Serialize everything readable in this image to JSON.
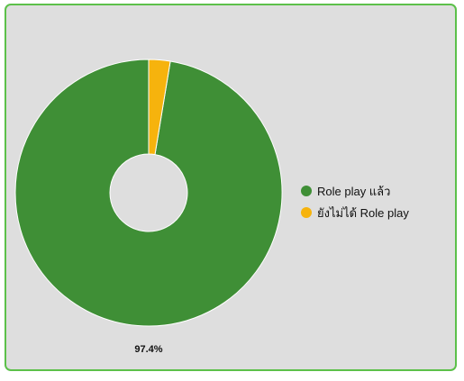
{
  "chart_data": {
    "type": "pie",
    "categories": [
      "Role play แล้ว",
      "ยังไม่ได้ Role play"
    ],
    "values": [
      97.4,
      2.6
    ],
    "colors": [
      "#3f8f36",
      "#f6b30d"
    ],
    "data_labels": [
      "97.4%",
      ""
    ],
    "title": "",
    "legend_placement": "right",
    "donut": true
  }
}
